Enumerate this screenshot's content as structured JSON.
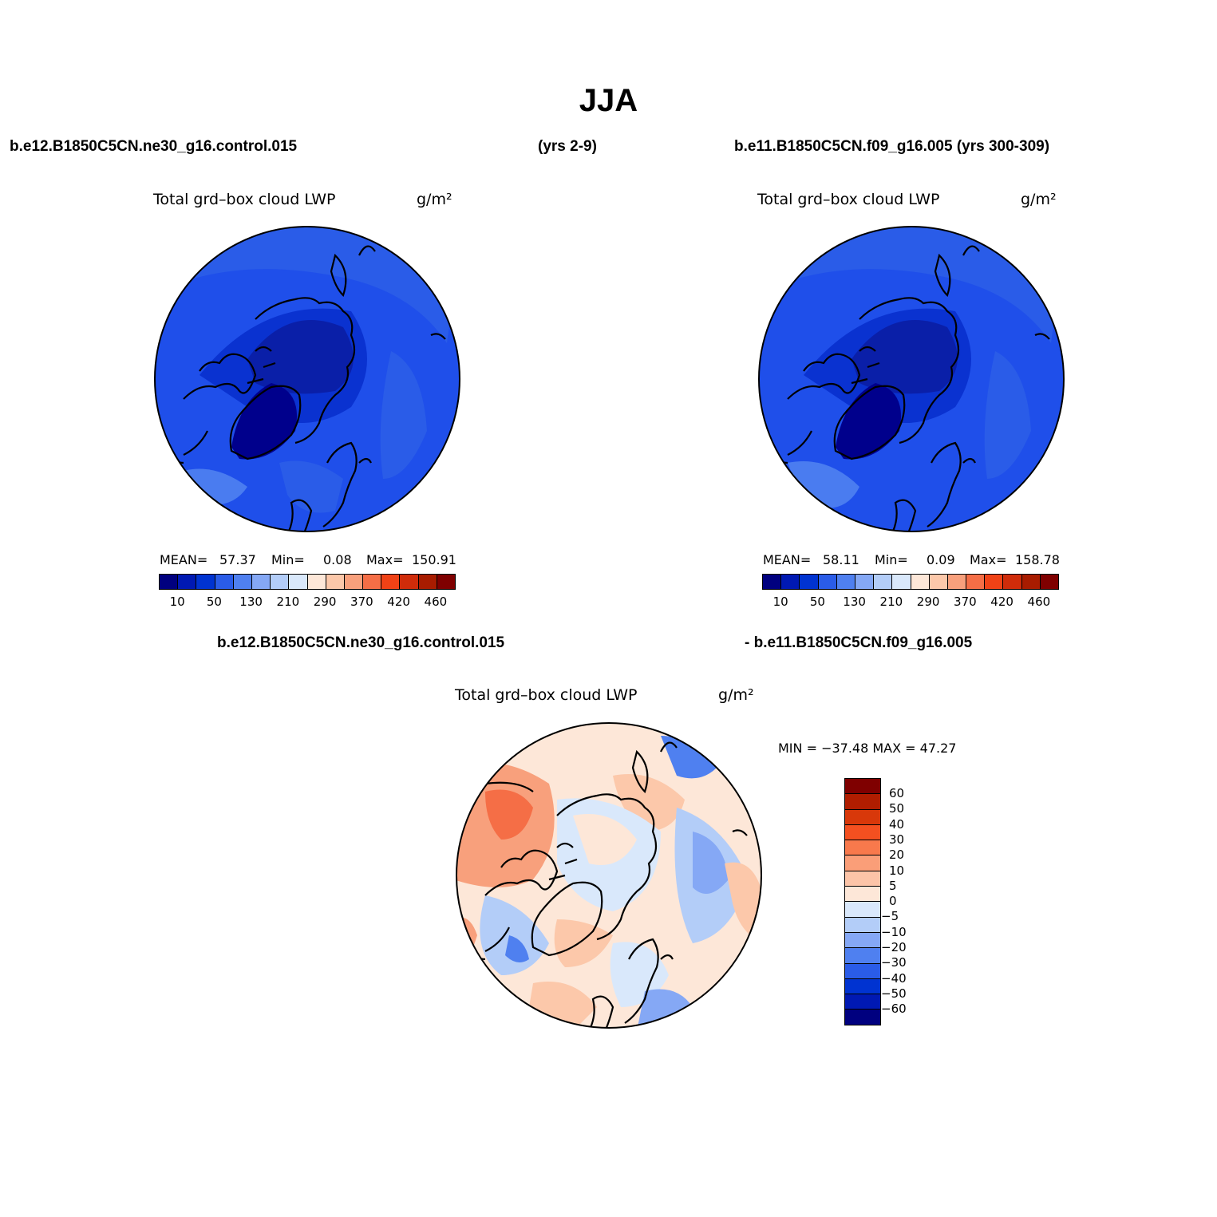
{
  "title": "JJA",
  "header": {
    "case1": "b.e12.B1850C5CN.ne30_g16.control.015",
    "case1_years": "(yrs 2-9)",
    "case2": "b.e11.B1850C5CN.f09_g16.005 (yrs 300-309)",
    "diff_left": "b.e12.B1850C5CN.ne30_g16.control.015",
    "diff_right": "- b.e11.B1850C5CN.f09_g16.005"
  },
  "panels": {
    "case1": {
      "var_label": "Total grd–box cloud LWP",
      "units": "g/m²",
      "mean_label": "MEAN=",
      "mean_value": "57.37",
      "min_label": "Min=",
      "min_value": "0.08",
      "max_label": "Max=",
      "max_value": "150.91"
    },
    "case2": {
      "var_label": "Total grd–box cloud LWP",
      "units": "g/m²",
      "mean_label": "MEAN=",
      "mean_value": "58.11",
      "min_label": "Min=",
      "min_value": "0.09",
      "max_label": "Max=",
      "max_value": "158.78"
    },
    "diff": {
      "var_label": "Total grd–box cloud LWP",
      "units": "g/m²",
      "minmax": "MIN = −37.48 MAX =  47.27"
    }
  },
  "colorbar_main": {
    "colors": [
      "#00007f",
      "#0019b3",
      "#0033d1",
      "#2a5ce8",
      "#4f80f0",
      "#85a8f5",
      "#b3cdf8",
      "#d9e8fb",
      "#fde7d8",
      "#fcc8aa",
      "#f8a07c",
      "#f56e46",
      "#f04216",
      "#d02c0a",
      "#a81c00",
      "#7f0000"
    ],
    "ticks": [
      "10",
      "50",
      "130",
      "210",
      "290",
      "370",
      "420",
      "460"
    ]
  },
  "colorbar_diff": {
    "colors": [
      "#7f0000",
      "#b01d00",
      "#d8380a",
      "#f45020",
      "#f8794c",
      "#fa9e78",
      "#fcc4a8",
      "#fde7d8",
      "#d9e8fb",
      "#b3cdf8",
      "#85a8f5",
      "#4f80f0",
      "#2a5ce8",
      "#0033d1",
      "#0019b3",
      "#00007f"
    ],
    "ticks": [
      "60",
      "50",
      "40",
      "30",
      "20",
      "10",
      "5",
      "0",
      "−5",
      "−10",
      "−20",
      "−30",
      "−40",
      "−50",
      "−60"
    ]
  },
  "map_colors": {
    "ocean_base": "#1f4fea",
    "mid_blue": "#0a32d0",
    "dark_blue": "#0a1fa8",
    "navy": "#00008c",
    "light_blue": "#4a7cf0",
    "coast": "#000000"
  }
}
